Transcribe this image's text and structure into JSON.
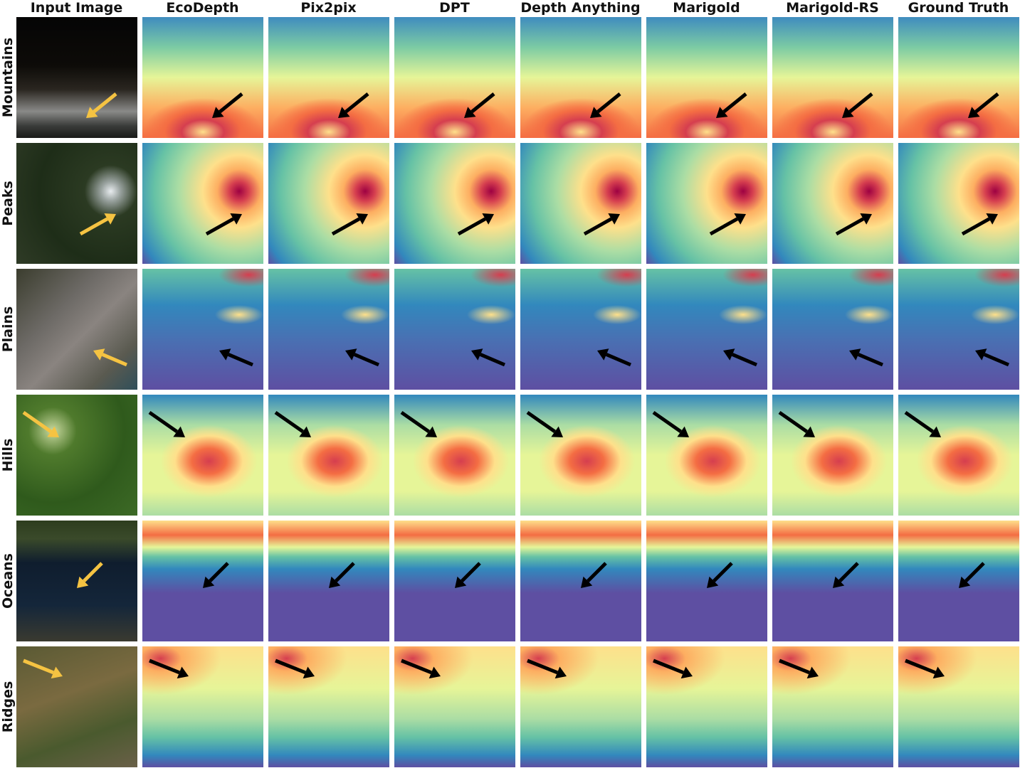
{
  "columns": [
    "Input Image",
    "EcoDepth",
    "Pix2pix",
    "DPT",
    "Depth Anything",
    "Marigold",
    "Marigold-RS",
    "Ground Truth"
  ],
  "rows": [
    "Mountains",
    "Peaks",
    "Plains",
    "Hills",
    "Oceans",
    "Ridges"
  ]
}
